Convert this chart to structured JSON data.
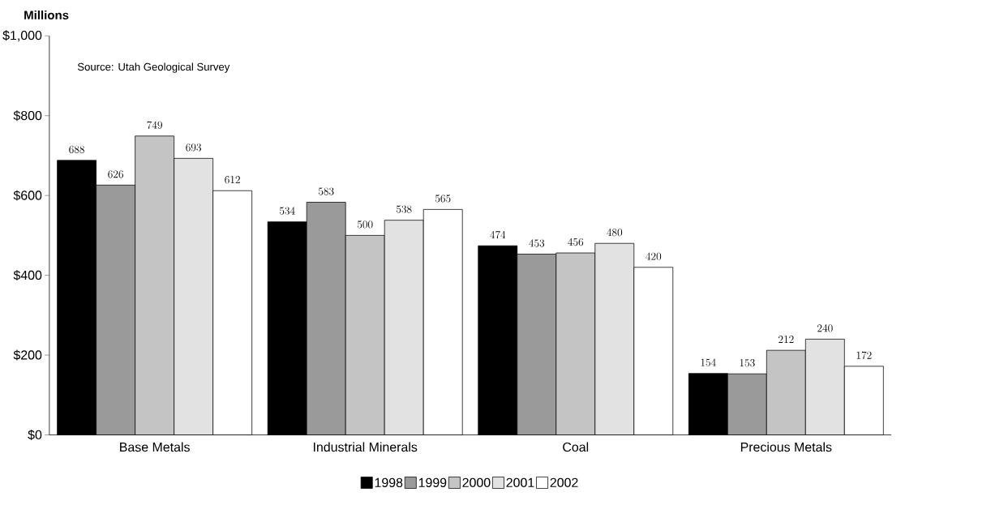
{
  "chart_data": {
    "type": "bar",
    "ylabel": "Millions",
    "annotations": [
      "Source: Utah Geological Survey"
    ],
    "categories": [
      "Base Metals",
      "Industrial Minerals",
      "Coal",
      "Precious Metals"
    ],
    "series": [
      {
        "name": "1998",
        "color": "#000000",
        "values": [
          688,
          534,
          474,
          154
        ]
      },
      {
        "name": "1999",
        "color": "#9a9a9a",
        "values": [
          626,
          583,
          453,
          153
        ]
      },
      {
        "name": "2000",
        "color": "#c4c4c4",
        "values": [
          749,
          500,
          456,
          212
        ]
      },
      {
        "name": "2001",
        "color": "#e2e2e2",
        "values": [
          693,
          538,
          480,
          240
        ]
      },
      {
        "name": "2002",
        "color": "#ffffff",
        "values": [
          612,
          565,
          420,
          172
        ]
      }
    ],
    "ylim": [
      0,
      1000
    ],
    "yticks": [
      {
        "value": 0,
        "label": "$0"
      },
      {
        "value": 200,
        "label": "$200"
      },
      {
        "value": 400,
        "label": "$400"
      },
      {
        "value": 600,
        "label": "$600"
      },
      {
        "value": 800,
        "label": "$800"
      },
      {
        "value": 1000,
        "label": "$1,000"
      }
    ],
    "data_labels": true,
    "grid": false,
    "legend": "bottom"
  }
}
